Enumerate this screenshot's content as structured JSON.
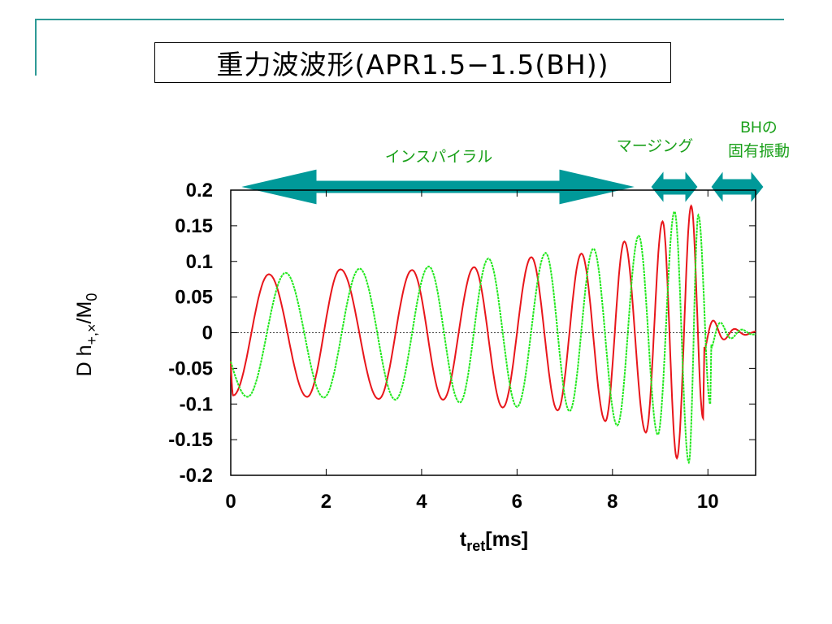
{
  "slide": {
    "title": "重力波波形(APR1.5−1.5(BH))"
  },
  "colors": {
    "accent": "#009999",
    "line_color": "#2e9a96",
    "series_red": "#e8161b",
    "series_green": "#22e81e",
    "label_green": "#1aa01a"
  },
  "phases": [
    {
      "label": "インスパイラル"
    },
    {
      "label": "マージング"
    },
    {
      "label": "BHの",
      "label2": "固有振動"
    }
  ],
  "chart_data": {
    "type": "line",
    "title": "",
    "xlabel": "t",
    "xlabel_sub": "ret",
    "xlabel_unit": "[ms]",
    "ylabel": "D h",
    "ylabel_sub": "+,×",
    "ylabel_unit": "/M",
    "ylabel_unit_sub": "0",
    "xlim": [
      0,
      11
    ],
    "ylim": [
      -0.2,
      0.2
    ],
    "xticks": [
      "0",
      "2",
      "4",
      "6",
      "8",
      "10"
    ],
    "yticks": [
      "0.2",
      "0.15",
      "0.1",
      "0.05",
      "0",
      "-0.05",
      "-0.1",
      "-0.15",
      "-0.2"
    ],
    "series": [
      {
        "color": "#e8161b",
        "peak_times": [
          0.8,
          2.3,
          3.8,
          5.1,
          6.3,
          7.35,
          8.25,
          9.05,
          9.65
        ],
        "peak_amplitudes": [
          0.082,
          0.089,
          0.088,
          0.092,
          0.106,
          0.111,
          0.128,
          0.156,
          0.178
        ],
        "trough_times": [
          0.05,
          1.6,
          3.1,
          4.45,
          5.7,
          6.85,
          7.85,
          8.7,
          9.35,
          9.9
        ],
        "trough_amplitudes": [
          -0.088,
          -0.09,
          -0.093,
          -0.094,
          -0.105,
          -0.109,
          -0.124,
          -0.14,
          -0.176,
          -0.12
        ]
      },
      {
        "color": "#22e81e",
        "peak_times": [
          1.15,
          2.7,
          4.15,
          5.4,
          6.6,
          7.6,
          8.55,
          9.3,
          9.8
        ],
        "peak_amplitudes": [
          0.084,
          0.09,
          0.093,
          0.104,
          0.112,
          0.118,
          0.136,
          0.17,
          0.165
        ],
        "trough_times": [
          0.35,
          1.95,
          3.45,
          4.8,
          6.0,
          7.1,
          8.1,
          8.95,
          9.6,
          10.05
        ],
        "trough_amplitudes": [
          -0.09,
          -0.091,
          -0.094,
          -0.098,
          -0.104,
          -0.11,
          -0.13,
          -0.143,
          -0.182,
          -0.1
        ]
      }
    ]
  }
}
